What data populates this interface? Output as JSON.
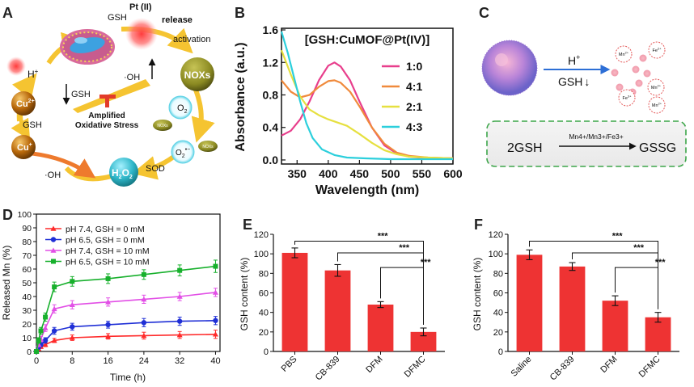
{
  "panel_labels": {
    "A": "A",
    "B": "B",
    "C": "C",
    "D": "D",
    "E": "E",
    "F": "F"
  },
  "colors": {
    "red_bar": "#ee3333",
    "pink": "#e83e8c",
    "orange": "#f08a3c",
    "yellow": "#e6e040",
    "cyan": "#2ccfdc",
    "d_red": "#ff2a2a",
    "d_blue": "#1f2fd6",
    "d_pink": "#e24fe6",
    "d_green": "#17b02c",
    "arrow_gold": "#f5c431",
    "nox_olive": "#8b8a22",
    "cu_brown": "#b8680b",
    "teal": "#2fb7c9",
    "dash_green": "#3da64a"
  },
  "panel_a": {
    "gsh_top": "GSH",
    "pt_label": "Pt (II)",
    "release": "release",
    "activation": "activation",
    "h_plus": "H",
    "h_sup": "+",
    "oh_center": "·OH",
    "gsh_down": "GSH",
    "noxs": "NOXs",
    "amplified_1": "Amplified",
    "amplified_2": "Oxidative Stress",
    "o2": "O",
    "o2_sub": "2",
    "o2_rad": "O",
    "o2_rad_sub": "2",
    "o2_rad_sup": "•−",
    "nox_small_1": "NOXs",
    "nox_small_2": "NOXs",
    "cu2": "Cu",
    "cu2_sup": "2+",
    "gsh_left": "GSH",
    "cu1": "Cu",
    "cu1_sup": "+",
    "sod": "SOD",
    "h2o2": "H",
    "h2o2_sub1": "2",
    "h2o2_mid": "O",
    "h2o2_sub2": "2",
    "oh_bottom": "·OH"
  },
  "panel_c": {
    "h_plus": "H",
    "h_sup": "+",
    "gsh_down": "GSH",
    "ions": [
      "Mn2+",
      "Fe2+",
      "Mn2+",
      "Fe3+",
      "Mn2+"
    ],
    "reaction_left": "2GSH",
    "reaction_catalyst": "Mn4+/Mn3+/Fe3+",
    "reaction_right": "GSSG"
  },
  "chart_data": [
    {
      "id": "B",
      "type": "line",
      "title": "[GSH:CuMOF@Pt(IV)]",
      "xlabel": "Wavelength (nm)",
      "ylabel": "Absorbance (a.u.)",
      "xlim": [
        325,
        600
      ],
      "ylim": [
        -0.05,
        1.62
      ],
      "xticks": [
        350,
        400,
        450,
        500,
        550,
        600
      ],
      "yticks": [
        0.0,
        0.4,
        0.8,
        1.2,
        1.6
      ],
      "ytick_labels": [
        "0.0",
        "0.4",
        "0.8",
        "1.2",
        "1.6"
      ],
      "series": [
        {
          "name": "1:0",
          "color": "#e83e8c",
          "x": [
            325,
            340,
            355,
            370,
            385,
            400,
            410,
            420,
            435,
            450,
            470,
            490,
            510,
            530,
            560,
            600
          ],
          "y": [
            0.3,
            0.36,
            0.5,
            0.72,
            0.98,
            1.16,
            1.2,
            1.15,
            0.98,
            0.72,
            0.4,
            0.18,
            0.08,
            0.04,
            0.02,
            0.02
          ]
        },
        {
          "name": "4:1",
          "color": "#f08a3c",
          "x": [
            325,
            340,
            355,
            370,
            385,
            400,
            410,
            420,
            435,
            450,
            470,
            490,
            510,
            530,
            560,
            600
          ],
          "y": [
            0.98,
            0.84,
            0.77,
            0.8,
            0.9,
            0.97,
            0.98,
            0.95,
            0.84,
            0.66,
            0.4,
            0.2,
            0.09,
            0.05,
            0.03,
            0.02
          ]
        },
        {
          "name": "2:1",
          "color": "#e6e040",
          "x": [
            325,
            340,
            355,
            370,
            385,
            400,
            415,
            430,
            450,
            470,
            490,
            510,
            530,
            560,
            600
          ],
          "y": [
            1.35,
            1.05,
            0.78,
            0.62,
            0.55,
            0.5,
            0.46,
            0.42,
            0.32,
            0.21,
            0.12,
            0.07,
            0.04,
            0.03,
            0.02
          ]
        },
        {
          "name": "4:3",
          "color": "#2ccfdc",
          "x": [
            325,
            335,
            345,
            355,
            365,
            375,
            390,
            410,
            430,
            460,
            500,
            550,
            600
          ],
          "y": [
            1.58,
            1.32,
            1.02,
            0.72,
            0.45,
            0.27,
            0.13,
            0.06,
            0.03,
            0.02,
            0.01,
            0.01,
            0.01
          ]
        }
      ]
    },
    {
      "id": "D",
      "type": "line",
      "xlabel": "Time (h)",
      "ylabel": "Released Mn (%)",
      "xlim": [
        0,
        41
      ],
      "ylim": [
        0,
        100
      ],
      "xticks": [
        0,
        8,
        16,
        24,
        32,
        40
      ],
      "yticks": [
        0,
        10,
        20,
        30,
        40,
        50,
        60,
        70,
        80,
        90,
        100
      ],
      "series": [
        {
          "name": "pH 7.4, GSH = 0 mM",
          "color": "#ff2a2a",
          "marker": "triangle",
          "x": [
            0,
            0.5,
            1,
            2,
            4,
            8,
            16,
            24,
            32,
            40
          ],
          "y": [
            0,
            2,
            3.5,
            5,
            8,
            10,
            11,
            11.5,
            12,
            12.5
          ],
          "err": [
            0,
            1,
            1,
            1.5,
            1.5,
            2,
            2,
            2.5,
            2.5,
            3
          ]
        },
        {
          "name": "pH 6.5, GSH = 0 mM",
          "color": "#1f2fd6",
          "marker": "circle",
          "x": [
            0,
            0.5,
            1,
            2,
            4,
            8,
            16,
            24,
            32,
            40
          ],
          "y": [
            0,
            3,
            5,
            8,
            15,
            18,
            19.5,
            21,
            22,
            22.5
          ],
          "err": [
            0,
            1,
            1.5,
            2,
            2.5,
            2.5,
            2.5,
            3,
            3,
            3
          ]
        },
        {
          "name": "pH 7.4, GSH = 10 mM",
          "color": "#e24fe6",
          "marker": "triangle",
          "x": [
            0,
            0.5,
            1,
            2,
            4,
            8,
            16,
            24,
            32,
            40
          ],
          "y": [
            0,
            5,
            9,
            17,
            31,
            34,
            36,
            38,
            40,
            43
          ],
          "err": [
            0,
            1.5,
            2,
            2.5,
            3,
            3,
            3,
            3,
            3,
            3
          ]
        },
        {
          "name": "pH 6.5, GSH = 10 mM",
          "color": "#17b02c",
          "marker": "square",
          "x": [
            0,
            0.5,
            1,
            2,
            4,
            8,
            16,
            24,
            32,
            40
          ],
          "y": [
            0,
            8,
            15,
            25,
            47,
            51,
            53,
            56,
            59,
            62
          ],
          "err": [
            0,
            2,
            2.5,
            3,
            3.5,
            3.5,
            3.5,
            3.5,
            4,
            4.5
          ]
        }
      ]
    },
    {
      "id": "E",
      "type": "bar",
      "ylabel": "GSH content (%)",
      "categories": [
        "PBS",
        "CB-839",
        "DFM",
        "DFMC"
      ],
      "values": [
        101,
        83,
        48,
        20
      ],
      "errors": [
        5,
        6,
        3,
        4
      ],
      "ylim": [
        0,
        120
      ],
      "yticks": [
        0,
        20,
        40,
        60,
        80,
        100,
        120
      ],
      "significance": [
        "***",
        "***",
        "***"
      ]
    },
    {
      "id": "F",
      "type": "bar",
      "ylabel": "GSH content (%)",
      "categories": [
        "Saline",
        "CB-839",
        "DFM",
        "DFMC"
      ],
      "values": [
        99,
        87,
        52,
        35
      ],
      "errors": [
        5,
        4,
        5,
        5
      ],
      "ylim": [
        0,
        120
      ],
      "yticks": [
        0,
        20,
        40,
        60,
        80,
        100,
        120
      ],
      "significance": [
        "***",
        "***",
        "***"
      ]
    }
  ]
}
